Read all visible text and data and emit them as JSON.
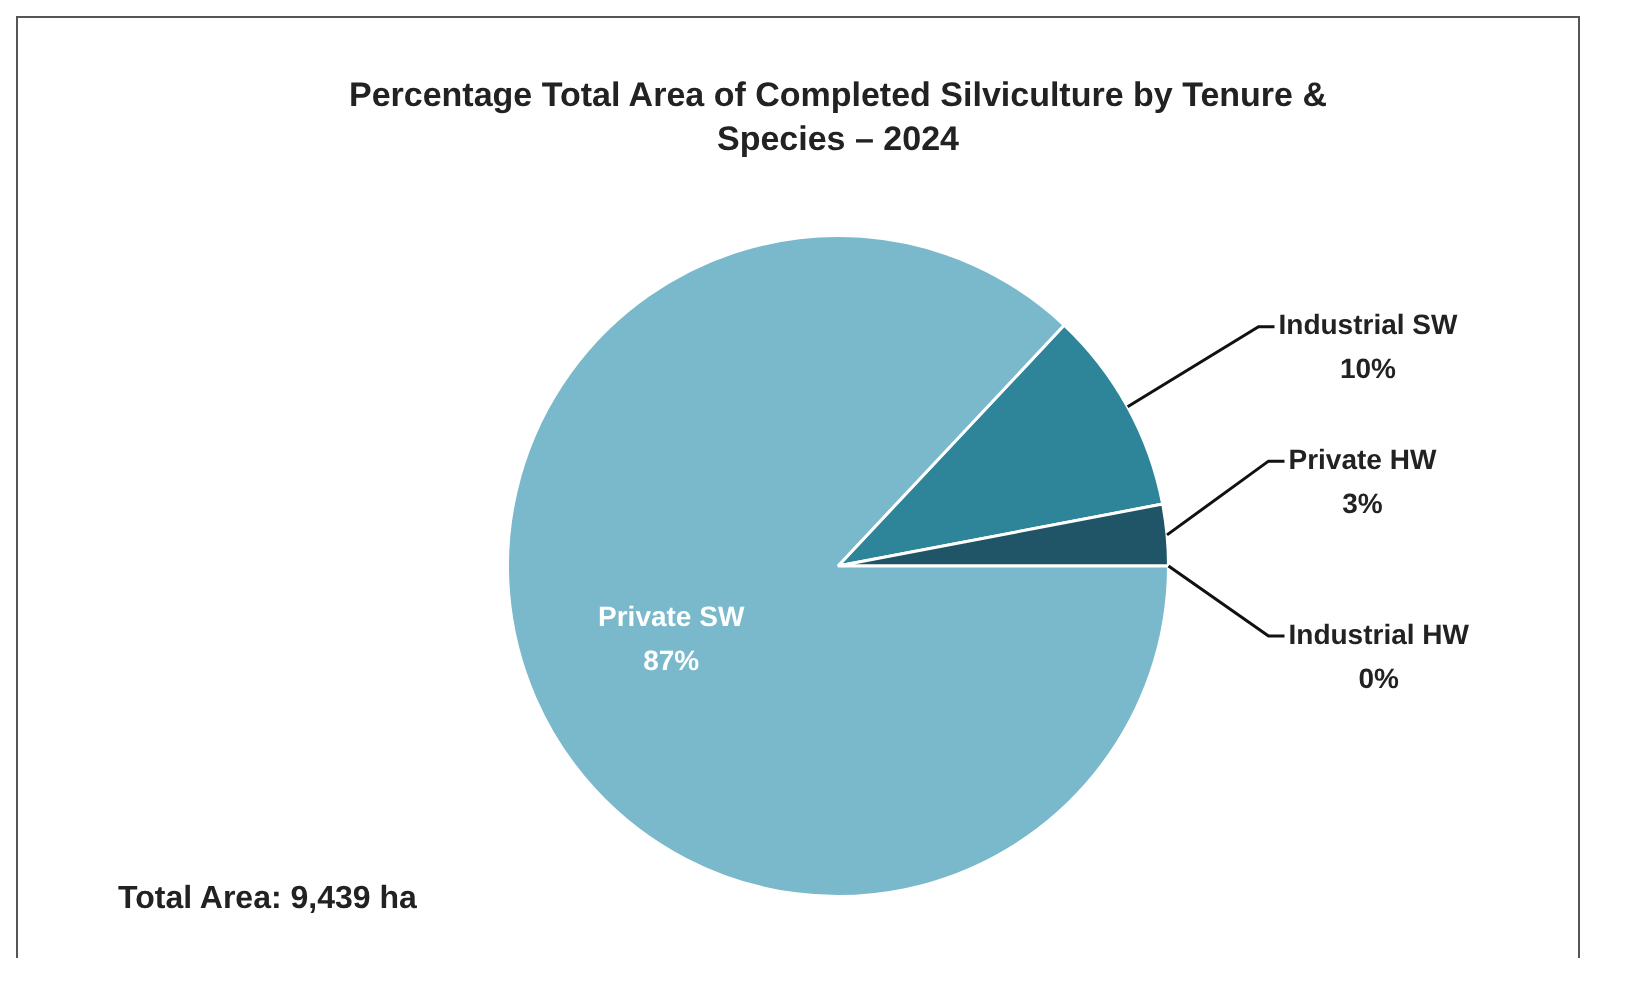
{
  "chart_data": {
    "type": "pie",
    "title": "Percentage Total Area of Completed Silviculture by Tenure & Species – 2024",
    "categories": [
      "Industrial SW",
      "Private HW",
      "Industrial HW",
      "Private SW"
    ],
    "values": [
      10,
      3,
      0,
      87
    ],
    "value_labels": [
      "10%",
      "3%",
      "0%",
      "87%"
    ],
    "colors": [
      "#2e8499",
      "#1f5566",
      "#1a3f4c",
      "#7ab8cc"
    ],
    "legend": false,
    "annotations": [
      "Total Area: 9,439 ha"
    ]
  }
}
